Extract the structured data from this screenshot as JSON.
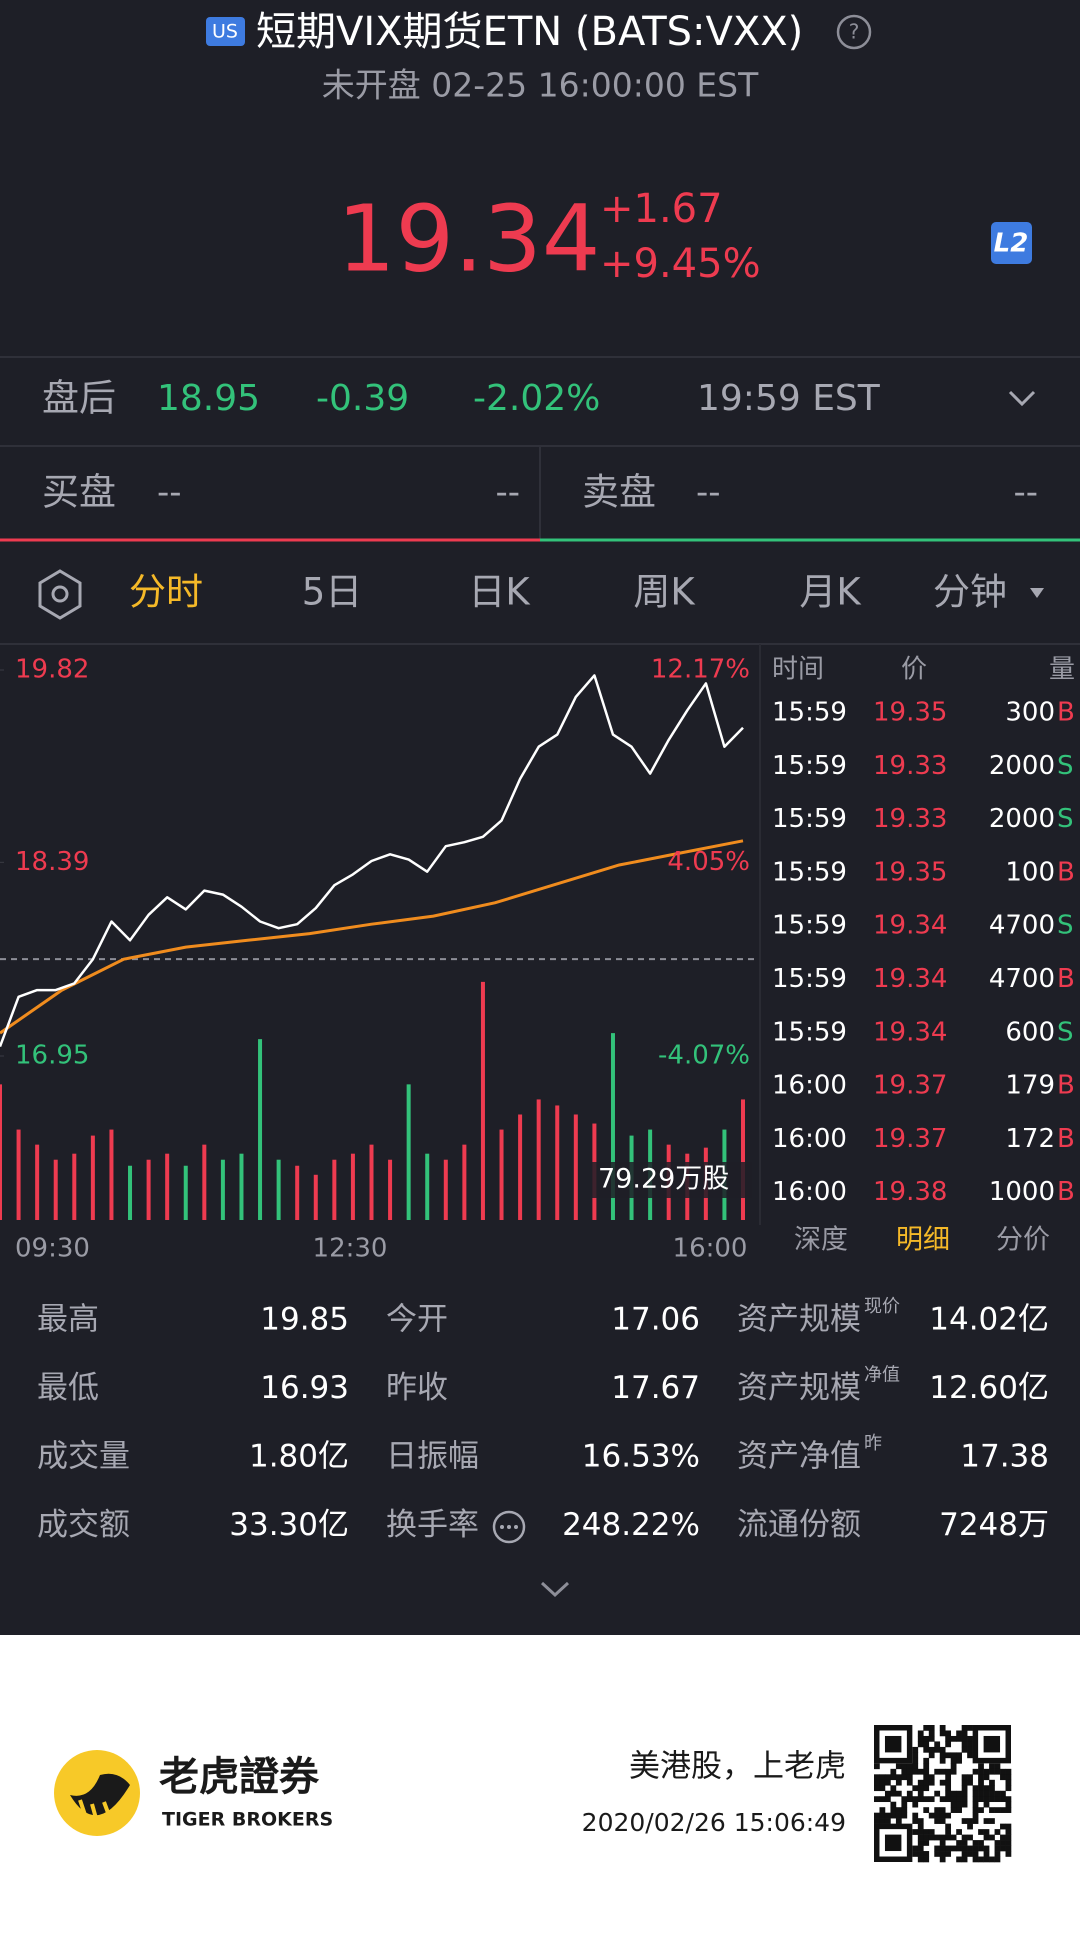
{
  "header": {
    "badge": "US",
    "title": "短期VIX期货ETN (BATS:VXX)",
    "help": "?",
    "status": "未开盘 02-25 16:00:00 EST"
  },
  "quote": {
    "price": "19.34",
    "change": "+1.67",
    "change_pct": "+9.45%",
    "level": "L2"
  },
  "after_hours": {
    "label": "盘后",
    "price": "18.95",
    "change": "-0.39",
    "change_pct": "-2.02%",
    "time": "19:59 EST"
  },
  "order_book": {
    "bid_label": "买盘",
    "bid": "--",
    "bid_size": "--",
    "ask_label": "卖盘",
    "ask": "--",
    "ask_size": "--"
  },
  "tabs": {
    "items": [
      "分时",
      "5日",
      "日K",
      "周K",
      "月K",
      "分钟"
    ],
    "active": 0
  },
  "chart": {
    "type": "line",
    "price": [
      17.02,
      17.39,
      17.44,
      17.44,
      17.49,
      17.67,
      17.95,
      17.81,
      18.0,
      18.13,
      18.04,
      18.18,
      18.15,
      18.06,
      17.95,
      17.9,
      17.93,
      18.05,
      18.22,
      18.3,
      18.4,
      18.45,
      18.41,
      18.32,
      18.51,
      18.54,
      18.58,
      18.7,
      19.01,
      19.25,
      19.34,
      19.62,
      19.78,
      19.34,
      19.25,
      19.05,
      19.3,
      19.52,
      19.72,
      19.25,
      19.39
    ],
    "average": [
      17.12,
      17.44,
      17.67,
      17.76,
      17.81,
      17.86,
      17.93,
      17.99,
      18.09,
      18.23,
      18.37,
      18.46,
      18.55
    ],
    "volume": [
      45,
      30,
      25,
      20,
      22,
      28,
      30,
      18,
      20,
      22,
      18,
      25,
      20,
      22,
      60,
      20,
      18,
      15,
      20,
      22,
      25,
      20,
      45,
      22,
      20,
      25,
      79,
      30,
      35,
      40,
      38,
      35,
      32,
      62,
      28,
      30,
      25,
      22,
      24,
      30,
      40
    ],
    "ylim": [
      16.95,
      19.82
    ],
    "yticks": [
      16.95,
      18.39,
      19.82
    ],
    "pct_ticks": [
      "-4.07%",
      "4.05%",
      "12.17%"
    ],
    "reference_line": 17.67,
    "volume_ylim": [
      0,
      79.29
    ],
    "volume_label": "79.29万股",
    "xticks": [
      "09:30",
      "12:30",
      "16:00"
    ],
    "colors": {
      "price": "#ffffff",
      "average": "#f08c1e",
      "up": "#ee3b50",
      "down": "#33c27a"
    }
  },
  "trades": {
    "headers": [
      "时间",
      "价",
      "量"
    ],
    "rows": [
      [
        "15:59",
        "19.35",
        "300",
        "B"
      ],
      [
        "15:59",
        "19.33",
        "2000",
        "S"
      ],
      [
        "15:59",
        "19.33",
        "2000",
        "S"
      ],
      [
        "15:59",
        "19.35",
        "100",
        "B"
      ],
      [
        "15:59",
        "19.34",
        "4700",
        "S"
      ],
      [
        "15:59",
        "19.34",
        "4700",
        "B"
      ],
      [
        "15:59",
        "19.34",
        "600",
        "S"
      ],
      [
        "16:00",
        "19.37",
        "179",
        "B"
      ],
      [
        "16:00",
        "19.37",
        "172",
        "B"
      ],
      [
        "16:00",
        "19.38",
        "1000",
        "B"
      ]
    ],
    "side_colors": {
      "B": "#ee3b50",
      "S": "#33c27a"
    },
    "tabs": [
      "深度",
      "明细",
      "分价"
    ],
    "active_tab": 1
  },
  "stats": [
    [
      {
        "label": "最高",
        "value": "19.85"
      },
      {
        "label": "今开",
        "value": "17.06"
      },
      {
        "label": "资产规模",
        "sup": "现价",
        "value": "14.02亿"
      }
    ],
    [
      {
        "label": "最低",
        "value": "16.93"
      },
      {
        "label": "昨收",
        "value": "17.67"
      },
      {
        "label": "资产规模",
        "sup": "净值",
        "value": "12.60亿"
      }
    ],
    [
      {
        "label": "成交量",
        "value": "1.80亿"
      },
      {
        "label": "日振幅",
        "value": "16.53%"
      },
      {
        "label": "资产净值",
        "sup": "昨",
        "value": "17.38"
      }
    ],
    [
      {
        "label": "成交额",
        "value": "33.30亿"
      },
      {
        "label": "换手率",
        "value": "248.22%"
      },
      {
        "label": "流通份额",
        "value": "7248万"
      }
    ]
  ],
  "footer": {
    "brand": "老虎證券",
    "brand_en": "TIGER BROKERS",
    "slogan": "美港股，上老虎",
    "timestamp": "2020/02/26 15:06:49"
  }
}
